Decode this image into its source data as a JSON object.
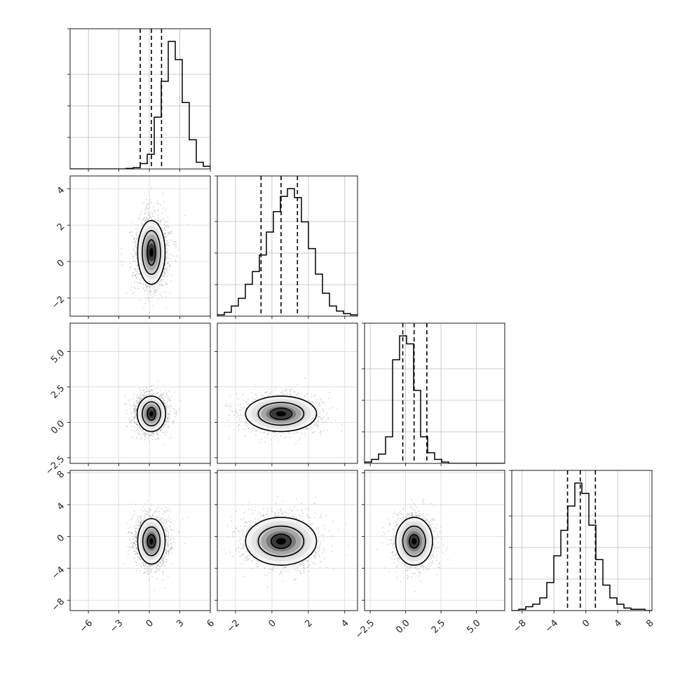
{
  "chart_data": {
    "type": "corner",
    "grid": true,
    "variables": [
      {
        "range": [
          -7.8,
          6.0
        ],
        "ticks": [
          -6,
          -3,
          0,
          3,
          6
        ],
        "tick_labels": [
          "−6",
          "−3",
          "0",
          "3",
          "6"
        ],
        "quantiles": [
          -0.9,
          0.2,
          1.2
        ],
        "hist": {
          "start": -7.8,
          "width": 0.69,
          "counts": [
            0,
            0,
            0,
            0,
            0,
            0,
            0,
            0,
            2,
            5,
            20,
            55,
            195,
            330,
            480,
            412,
            250,
            110,
            25,
            10,
            3,
            1
          ]
        }
      },
      {
        "range": [
          -3.0,
          4.7
        ],
        "ticks": [
          -2,
          0,
          2,
          4
        ],
        "tick_labels": [
          "−2",
          "0",
          "2",
          "4"
        ],
        "quantiles": [
          -0.6,
          0.5,
          1.4
        ],
        "hist": {
          "start": -3.0,
          "width": 0.385,
          "counts": [
            1,
            3,
            8,
            14,
            25,
            35,
            48,
            66,
            82,
            94,
            100,
            93,
            74,
            53,
            33,
            18,
            8,
            4,
            2,
            1
          ]
        }
      },
      {
        "range": [
          -2.9,
          7.0
        ],
        "ticks": [
          -2.5,
          0.0,
          2.5,
          5.0
        ],
        "tick_labels": [
          "−2.5",
          "0.0",
          "2.5",
          "5.0"
        ],
        "quantiles": [
          -0.2,
          0.6,
          1.5
        ],
        "hist": {
          "start": -2.9,
          "width": 0.495,
          "counts": [
            1,
            3,
            7,
            20,
            78,
            96,
            90,
            55,
            20,
            8,
            3,
            1,
            0,
            0,
            0,
            0,
            0,
            0,
            0,
            0
          ]
        }
      },
      {
        "range": [
          -9.3,
          8.3
        ],
        "ticks": [
          -8,
          -4,
          0,
          4,
          8
        ],
        "tick_labels": [
          "−8",
          "−4",
          "0",
          "4",
          "8"
        ],
        "quantiles": [
          -2.3,
          -0.7,
          1.2
        ],
        "hist": {
          "start": -9.3,
          "width": 0.88,
          "counts": [
            0,
            1,
            3,
            5,
            10,
            22,
            43,
            63,
            82,
            100,
            92,
            67,
            40,
            20,
            10,
            5,
            2,
            1,
            1,
            0
          ]
        }
      }
    ],
    "y_tick_labels": {
      "1": {
        "ticks": [
          -2,
          0,
          2,
          4
        ],
        "labels": [
          "−2",
          "0",
          "2",
          "4"
        ]
      },
      "2": {
        "ticks": [
          -2.5,
          0.0,
          2.5,
          5.0
        ],
        "labels": [
          "−2.5",
          "0.0",
          "2.5",
          "5.0"
        ]
      },
      "3": {
        "ticks": [
          -8,
          -4,
          0,
          4,
          8
        ],
        "labels": [
          "−8",
          "−4",
          "0",
          "4",
          "8"
        ]
      }
    },
    "pairs": [
      {
        "row": 1,
        "col": 0,
        "mean": [
          0.2,
          0.5
        ],
        "sd": [
          0.8,
          1.0
        ],
        "rho": 0.0,
        "contours": [
          [
            0.4,
            0.7
          ],
          [
            0.9,
            1.2
          ],
          [
            1.35,
            1.75
          ]
        ]
      },
      {
        "row": 2,
        "col": 0,
        "mean": [
          0.2,
          0.6
        ],
        "sd": [
          0.8,
          0.65
        ],
        "rho": 0.0,
        "contours": [
          [
            0.4,
            0.45
          ],
          [
            0.9,
            0.85
          ],
          [
            1.4,
            1.25
          ]
        ]
      },
      {
        "row": 2,
        "col": 1,
        "mean": [
          0.5,
          0.6
        ],
        "sd": [
          1.0,
          0.65
        ],
        "rho": 0.0,
        "contours": [
          [
            0.6,
            0.4
          ],
          [
            1.25,
            0.8
          ],
          [
            1.95,
            1.25
          ]
        ]
      },
      {
        "row": 3,
        "col": 0,
        "mean": [
          0.2,
          -0.6
        ],
        "sd": [
          0.8,
          1.6
        ],
        "rho": 0.0,
        "contours": [
          [
            0.4,
            0.85
          ],
          [
            0.85,
            1.8
          ],
          [
            1.35,
            2.85
          ]
        ]
      },
      {
        "row": 3,
        "col": 1,
        "mean": [
          0.5,
          -0.6
        ],
        "sd": [
          1.0,
          1.6
        ],
        "rho": 0.0,
        "contours": [
          [
            0.55,
            0.9
          ],
          [
            1.25,
            1.9
          ],
          [
            1.95,
            3.0
          ]
        ]
      },
      {
        "row": 3,
        "col": 2,
        "mean": [
          0.6,
          -0.6
        ],
        "sd": [
          0.65,
          1.6
        ],
        "rho": 0.0,
        "contours": [
          [
            0.35,
            0.85
          ],
          [
            0.8,
            1.9
          ],
          [
            1.3,
            3.0
          ]
        ]
      }
    ]
  }
}
